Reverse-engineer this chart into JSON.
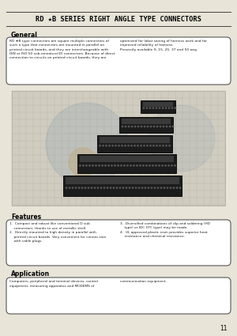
{
  "bg_color": "#e8e4d8",
  "title": "RD ★B SERIES RIGHT ANGLE TYPE CONNECTORS",
  "title_fontsize": 6.2,
  "general_heading": "General",
  "general_text_left": "RD ★B type connectors are square multipln connectors of\nsuch a type that connectors are mounted in parallel on\nprinted circuit boards, and they are interchangeable with\nDIN or ISO 50 sub-miniature(D) connectors. Because of direct\nconnection to circuits on printed circuit boards, they are",
  "general_text_right": "optimized for labor saving of harness work and for\nimproved reliability of harness.\nPresently available 9, 15, 25, 37 and 50 way.",
  "features_heading": "Features",
  "features_text_left": "1.  Compact and robust like conventional D sub\n    connectors, thanks to use of metallic shell.\n2.  Directly mounted to high density in parallel with\n    printed circuit boards. Very convenient for connec-tion\n    with cable plugs.",
  "features_text_right": "3.  Diversified combinations of clip and soldering (HD\n    type) or IDC (ITC type) may be made.\n4.  UL approved plastic resin provides superior heat\n    resistance and chemical resistance.",
  "application_heading": "Application",
  "application_text": "Computers, peripheral and terminal devices, control\nequipment, measuring apparatus and MODEMS of",
  "application_text_right": "communication equipment.",
  "page_number": "11",
  "line_color": "#444444",
  "box_bg": "#ffffff",
  "box_ec": "#555555",
  "heading_color": "#000000",
  "text_color": "#222222",
  "grid_bg": "#d0ccc0",
  "grid_line": "#b8b4a8",
  "watermark_color": "#7090a8",
  "watermark_alpha": 0.18
}
